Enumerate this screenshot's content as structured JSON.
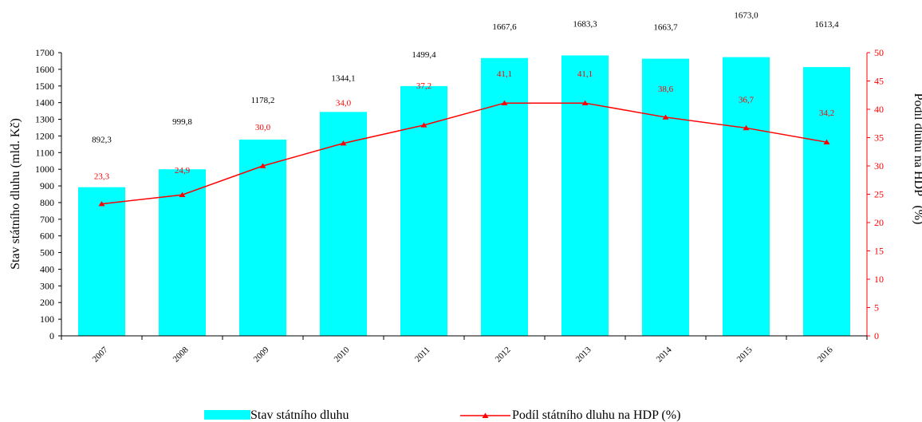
{
  "chart_data": {
    "type": "bar",
    "categories": [
      "2007",
      "2008",
      "2009",
      "2010",
      "2011",
      "2012",
      "2013",
      "2014",
      "2015",
      "2016"
    ],
    "series": [
      {
        "name": "Stav státního dluhu",
        "type": "bar",
        "axis": "left",
        "values": [
          892.3,
          999.8,
          1178.2,
          1344.1,
          1499.4,
          1667.6,
          1683.3,
          1663.7,
          1673.0,
          1613.4
        ],
        "labels": [
          "892,3",
          "999,8",
          "1178,2",
          "1344,1",
          "1499,4",
          "1667,6",
          "1683,3",
          "1663,7",
          "1673,0",
          "1613,4"
        ],
        "color": "#00ffff"
      },
      {
        "name": "Podíl státního dluhu na HDP (%)",
        "type": "line",
        "axis": "right",
        "marker": "triangle",
        "values": [
          23.3,
          24.9,
          30.0,
          34.0,
          37.2,
          41.1,
          41.1,
          38.6,
          36.7,
          34.2
        ],
        "labels": [
          "23,3",
          "24,9",
          "30,0",
          "34,0",
          "37,2",
          "41,1",
          "41,1",
          "38,6",
          "36,7",
          "34,2"
        ],
        "color": "#ff0000"
      }
    ],
    "ylabel": "Stav státního dluhu (mld. Kč)",
    "y2label": "Podíl dluhu na HDP   (%)",
    "ylim": [
      0,
      1700
    ],
    "y2lim": [
      0,
      50
    ],
    "yticks": [
      0,
      100,
      200,
      300,
      400,
      500,
      600,
      700,
      800,
      900,
      1000,
      1100,
      1200,
      1300,
      1400,
      1500,
      1600,
      1700
    ],
    "y2ticks": [
      0,
      5,
      10,
      15,
      20,
      25,
      30,
      35,
      40,
      45,
      50
    ],
    "grid": false,
    "legend_position": "bottom"
  }
}
